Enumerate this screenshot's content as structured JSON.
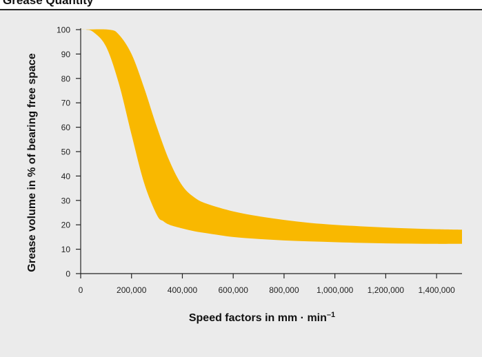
{
  "colors": {
    "band": "#f9b800",
    "axis": "#222222",
    "panel": "#ebebeb"
  },
  "chart_data": {
    "type": "area",
    "title": "Grease Quantity",
    "xlabel": "Speed factors in mm · min",
    "xlabel_superscript": "–1",
    "ylabel": "Grease volume in % of bearing free space",
    "xlim": [
      0,
      1500000
    ],
    "ylim": [
      0,
      100
    ],
    "x_ticks": [
      0,
      200000,
      400000,
      600000,
      800000,
      1000000,
      1200000,
      1400000
    ],
    "x_tick_labels": [
      "0",
      "200,000",
      "400,000",
      "600,000",
      "800,000",
      "1,000,000",
      "1,200,000",
      "1,400,000"
    ],
    "y_ticks": [
      0,
      10,
      20,
      30,
      40,
      50,
      60,
      70,
      80,
      90,
      100
    ],
    "y_tick_labels": [
      "0",
      "10",
      "20",
      "30",
      "40",
      "50",
      "60",
      "70",
      "80",
      "90",
      "100"
    ],
    "grid": false,
    "series": [
      {
        "role": "upper-bound",
        "x": [
          0,
          110000,
          150000,
          200000,
          250000,
          300000,
          350000,
          400000,
          450000,
          500000,
          600000,
          700000,
          800000,
          900000,
          1000000,
          1100000,
          1200000,
          1300000,
          1400000,
          1500000
        ],
        "y": [
          100,
          100,
          98,
          90,
          76,
          60,
          46,
          36,
          31,
          28.5,
          25.5,
          23.5,
          22,
          20.8,
          20,
          19.4,
          18.9,
          18.5,
          18.2,
          18
        ]
      },
      {
        "role": "lower-bound",
        "x": [
          0,
          20000,
          50000,
          100000,
          150000,
          200000,
          250000,
          300000,
          325000,
          350000,
          400000,
          450000,
          500000,
          600000,
          700000,
          800000,
          900000,
          1000000,
          1100000,
          1200000,
          1300000,
          1400000,
          1500000
        ],
        "y": [
          100,
          100,
          99,
          93,
          78,
          57,
          37,
          24,
          21.5,
          20,
          18.5,
          17.3,
          16.5,
          15,
          14.2,
          13.6,
          13.2,
          12.9,
          12.6,
          12.4,
          12.3,
          12.2,
          12.2
        ]
      }
    ]
  }
}
